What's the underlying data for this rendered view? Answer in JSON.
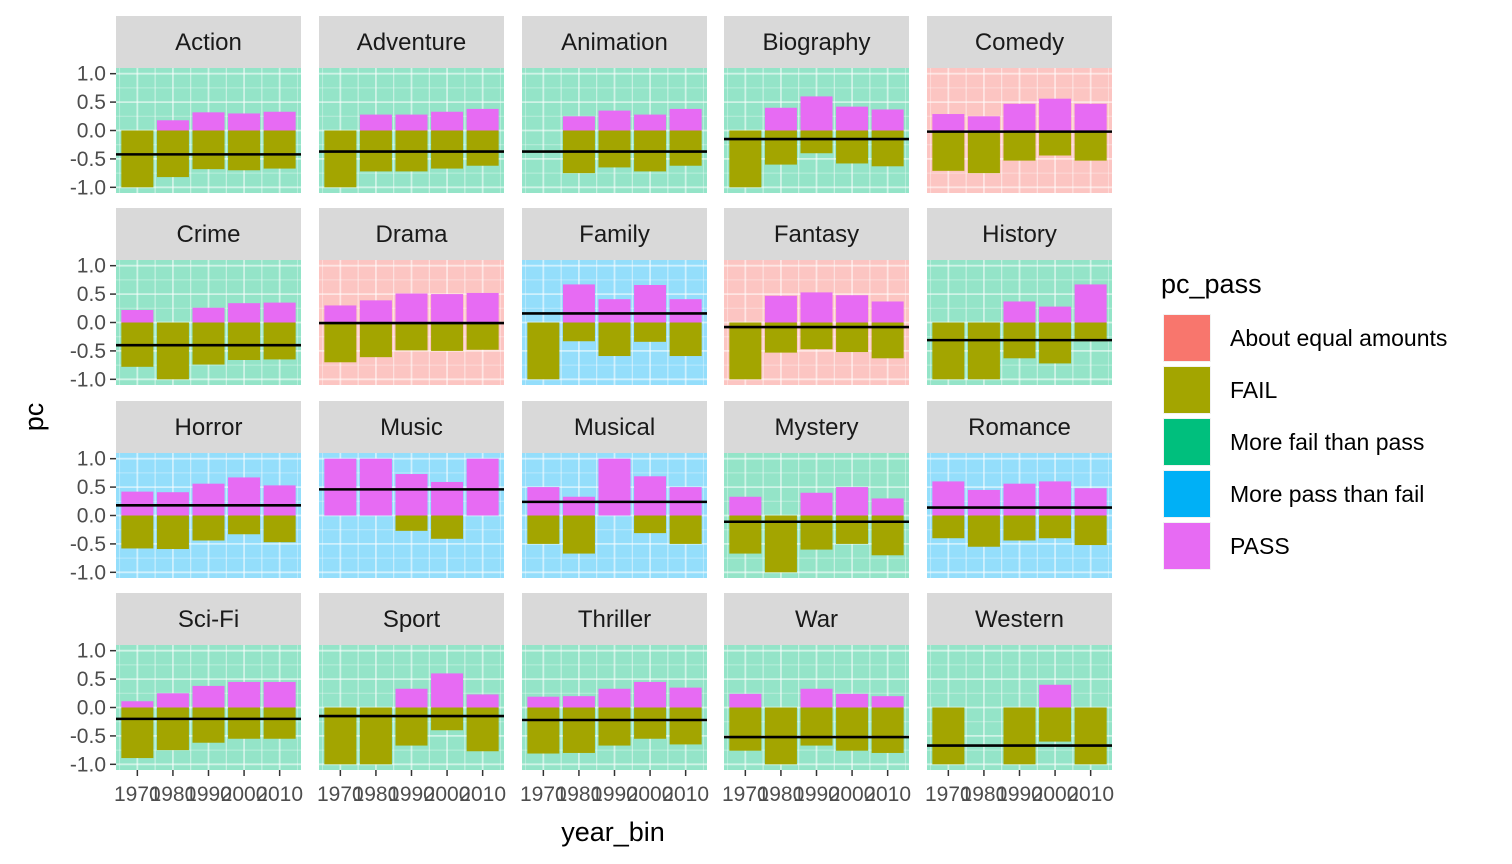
{
  "chart_data": {
    "type": "bar",
    "facet_type": "faceted bar chart (stacked pass/fail bars with mean line, tinted panel backgrounds)",
    "xlabel": "year_bin",
    "ylabel": "pc",
    "ylim": [
      -1.0,
      1.0
    ],
    "y_ticks": [
      "1.0",
      "0.5",
      "0.0",
      "-0.5",
      "-1.0"
    ],
    "y_tick_values": [
      1.0,
      0.5,
      0.0,
      -0.5,
      -1.0
    ],
    "categories": [
      "1970",
      "1980",
      "1990",
      "2000",
      "2010"
    ],
    "grid": true,
    "legend": {
      "title": "pc_pass",
      "position": "right",
      "items": [
        {
          "label": "About equal amounts",
          "color": "#F8766D"
        },
        {
          "label": "FAIL",
          "color": "#A3A500"
        },
        {
          "label": "More fail than pass",
          "color": "#00BF7D"
        },
        {
          "label": "More pass than fail",
          "color": "#00B0F6"
        },
        {
          "label": "PASS",
          "color": "#E76BF3"
        }
      ]
    },
    "bar_colors": {
      "PASS": "#E76BF3",
      "FAIL": "#A3A500"
    },
    "panel_colors": {
      "About equal amounts": "#F8766D",
      "More fail than pass": "#00BF7D",
      "More pass than fail": "#00B0F6"
    },
    "panels": [
      {
        "genre": "Action",
        "pc_pass": "More fail than pass",
        "pass": [
          0,
          0.18,
          0.32,
          0.3,
          0.33
        ],
        "fail": [
          -1.0,
          -0.82,
          -0.68,
          -0.7,
          -0.67
        ],
        "mean": -0.42
      },
      {
        "genre": "Adventure",
        "pc_pass": "More fail than pass",
        "pass": [
          0,
          0.28,
          0.28,
          0.33,
          0.38
        ],
        "fail": [
          -1.0,
          -0.72,
          -0.72,
          -0.67,
          -0.62
        ],
        "mean": -0.37
      },
      {
        "genre": "Animation",
        "pc_pass": "More fail than pass",
        "pass": [
          null,
          0.25,
          0.35,
          0.28,
          0.38
        ],
        "fail": [
          null,
          -0.75,
          -0.65,
          -0.72,
          -0.62
        ],
        "mean": -0.37
      },
      {
        "genre": "Biography",
        "pc_pass": "More fail than pass",
        "pass": [
          0,
          0.4,
          0.6,
          0.42,
          0.37
        ],
        "fail": [
          -1.0,
          -0.6,
          -0.4,
          -0.58,
          -0.63
        ],
        "mean": -0.15
      },
      {
        "genre": "Comedy",
        "pc_pass": "About equal amounts",
        "pass": [
          0.29,
          0.25,
          0.47,
          0.56,
          0.47
        ],
        "fail": [
          -0.71,
          -0.75,
          -0.53,
          -0.44,
          -0.53
        ],
        "mean": -0.02
      },
      {
        "genre": "Crime",
        "pc_pass": "More fail than pass",
        "pass": [
          0.22,
          0,
          0.26,
          0.34,
          0.35
        ],
        "fail": [
          -0.78,
          -1.0,
          -0.74,
          -0.66,
          -0.65
        ],
        "mean": -0.4
      },
      {
        "genre": "Drama",
        "pc_pass": "About equal amounts",
        "pass": [
          0.3,
          0.39,
          0.51,
          0.5,
          0.52
        ],
        "fail": [
          -0.7,
          -0.61,
          -0.49,
          -0.5,
          -0.48
        ],
        "mean": -0.01
      },
      {
        "genre": "Family",
        "pc_pass": "More pass than fail",
        "pass": [
          0,
          0.67,
          0.41,
          0.66,
          0.41
        ],
        "fail": [
          -1.0,
          -0.33,
          -0.59,
          -0.34,
          -0.59
        ],
        "mean": 0.16
      },
      {
        "genre": "Fantasy",
        "pc_pass": "About equal amounts",
        "pass": [
          0,
          0.47,
          0.53,
          0.48,
          0.37
        ],
        "fail": [
          -1.0,
          -0.53,
          -0.47,
          -0.52,
          -0.63
        ],
        "mean": -0.08
      },
      {
        "genre": "History",
        "pc_pass": "More fail than pass",
        "pass": [
          0,
          0,
          0.37,
          0.28,
          0.67
        ],
        "fail": [
          -1.0,
          -1.0,
          -0.63,
          -0.72,
          -0.33
        ],
        "mean": -0.31
      },
      {
        "genre": "Horror",
        "pc_pass": "More pass than fail",
        "pass": [
          0.42,
          0.41,
          0.56,
          0.67,
          0.53
        ],
        "fail": [
          -0.58,
          -0.59,
          -0.44,
          -0.33,
          -0.47
        ],
        "mean": 0.18
      },
      {
        "genre": "Music",
        "pc_pass": "More pass than fail",
        "pass": [
          1.0,
          1.0,
          0.73,
          0.59,
          1.0
        ],
        "fail": [
          0,
          0,
          -0.27,
          -0.41,
          0
        ],
        "mean": 0.46
      },
      {
        "genre": "Musical",
        "pc_pass": "More pass than fail",
        "pass": [
          0.5,
          0.33,
          1.0,
          0.69,
          0.5
        ],
        "fail": [
          -0.5,
          -0.67,
          0,
          -0.31,
          -0.5
        ],
        "mean": 0.24
      },
      {
        "genre": "Mystery",
        "pc_pass": "More fail than pass",
        "pass": [
          0.33,
          0,
          0.4,
          0.5,
          0.3
        ],
        "fail": [
          -0.67,
          -1.0,
          -0.6,
          -0.5,
          -0.7
        ],
        "mean": -0.11
      },
      {
        "genre": "Romance",
        "pc_pass": "More pass than fail",
        "pass": [
          0.6,
          0.45,
          0.56,
          0.6,
          0.48
        ],
        "fail": [
          -0.4,
          -0.55,
          -0.44,
          -0.4,
          -0.52
        ],
        "mean": 0.14
      },
      {
        "genre": "Sci-Fi",
        "pc_pass": "More fail than pass",
        "pass": [
          0.11,
          0.25,
          0.38,
          0.45,
          0.45
        ],
        "fail": [
          -0.89,
          -0.75,
          -0.62,
          -0.55,
          -0.55
        ],
        "mean": -0.2
      },
      {
        "genre": "Sport",
        "pc_pass": "More fail than pass",
        "pass": [
          0,
          0,
          0.33,
          0.6,
          0.23
        ],
        "fail": [
          -1.0,
          -1.0,
          -0.67,
          -0.4,
          -0.77
        ],
        "mean": -0.15
      },
      {
        "genre": "Thriller",
        "pc_pass": "More fail than pass",
        "pass": [
          0.19,
          0.2,
          0.33,
          0.45,
          0.35
        ],
        "fail": [
          -0.81,
          -0.8,
          -0.67,
          -0.55,
          -0.65
        ],
        "mean": -0.22
      },
      {
        "genre": "War",
        "pc_pass": "More fail than pass",
        "pass": [
          0.24,
          0,
          0.33,
          0.24,
          0.2
        ],
        "fail": [
          -0.76,
          -1.0,
          -0.67,
          -0.76,
          -0.8
        ],
        "mean": -0.52
      },
      {
        "genre": "Western",
        "pc_pass": "More fail than pass",
        "pass": [
          0,
          null,
          0,
          0.4,
          0
        ],
        "fail": [
          -1.0,
          null,
          -1.0,
          -0.6,
          -1.0
        ],
        "mean": -0.67
      }
    ]
  }
}
